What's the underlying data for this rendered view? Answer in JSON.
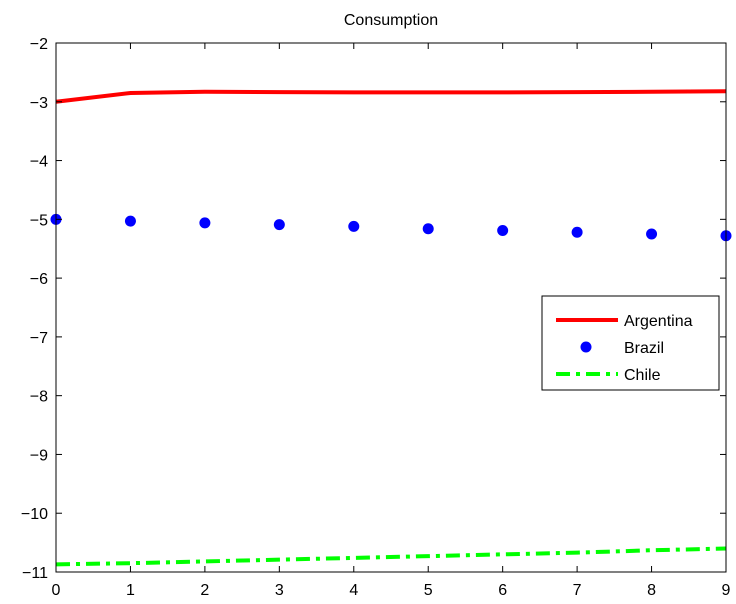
{
  "chart_data": {
    "type": "line",
    "title": "Consumption",
    "xlabel": "",
    "ylabel": "",
    "xlim": [
      0,
      9
    ],
    "ylim": [
      -11,
      -2
    ],
    "xticks": [
      "0",
      "1",
      "2",
      "3",
      "4",
      "5",
      "6",
      "7",
      "8",
      "9"
    ],
    "yticks": [
      "−2",
      "−3",
      "−4",
      "−5",
      "−6",
      "−7",
      "−8",
      "−9",
      "−10",
      "−11"
    ],
    "grid": false,
    "legend_position": "center-right",
    "x": [
      0,
      1,
      2,
      3,
      4,
      5,
      6,
      7,
      8,
      9
    ],
    "series": [
      {
        "name": "Argentina",
        "style": "solid",
        "color": "#ff0000",
        "values": [
          -3.0,
          -2.85,
          -2.83,
          -2.835,
          -2.84,
          -2.84,
          -2.84,
          -2.835,
          -2.83,
          -2.82
        ]
      },
      {
        "name": "Brazil",
        "style": "markers",
        "color": "#0000ff",
        "values": [
          -5.0,
          -5.03,
          -5.06,
          -5.09,
          -5.12,
          -5.16,
          -5.19,
          -5.22,
          -5.25,
          -5.28
        ]
      },
      {
        "name": "Chile",
        "style": "dash-dot",
        "color": "#00ff00",
        "values": [
          -10.87,
          -10.85,
          -10.82,
          -10.79,
          -10.76,
          -10.73,
          -10.7,
          -10.67,
          -10.63,
          -10.6
        ]
      }
    ]
  }
}
